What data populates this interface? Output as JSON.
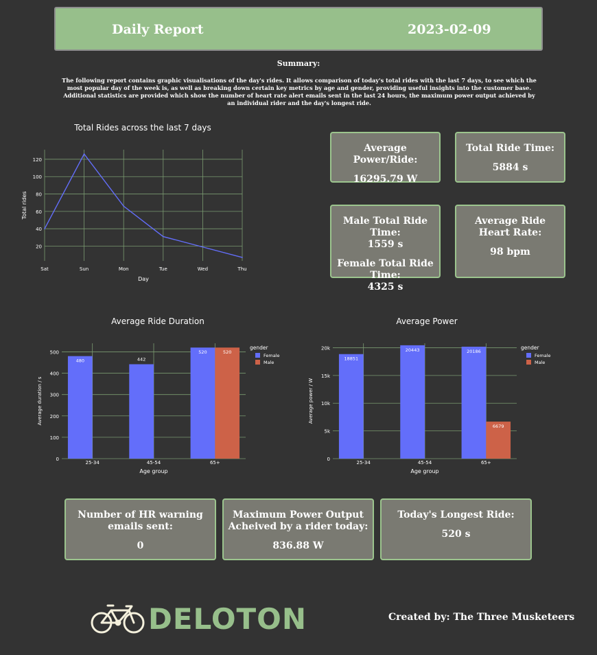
{
  "header": {
    "title": "Daily Report",
    "date": "2023-02-09"
  },
  "summary": {
    "heading": "Summary:",
    "text": "The following report contains graphic visualisations of the day's rides. It allows comparison of today's total rides with the last 7 days, to see which the most popular day of the week is, as well as breaking down certain key metrics by age and gender, providing useful insights into the customer base. Additional statistics are provided which show the number of heart rate alert emails sent in the last 24 hours, the maximum power output achieved by an individual rider and the day's longest ride."
  },
  "stats": {
    "avg_power": {
      "label": "Average Power/Ride:",
      "value": "16295.79 W"
    },
    "total_ride_time": {
      "label": "Total Ride Time:",
      "value": "5884 s"
    },
    "male_ride_time": {
      "label": "Male Total Ride Time:",
      "value": "1559 s"
    },
    "female_ride_time": {
      "label": "Female Total Ride Time:",
      "value": "4325 s"
    },
    "avg_heart_rate": {
      "label": "Average Ride Heart Rate:",
      "value": "98 bpm"
    },
    "hr_emails": {
      "label": "Number of HR warning emails sent:",
      "value": "0"
    },
    "max_power": {
      "label": "Maximum Power Output Acheived by a rider today:",
      "value": "836.88 W"
    },
    "longest_ride": {
      "label": "Today's Longest Ride:",
      "value": "520 s"
    }
  },
  "footer": {
    "brand": "DELOTON",
    "credit": "Created by: The Three Musketeers"
  },
  "colors": {
    "female": "#636efa",
    "male": "#cd6248",
    "grid": "#7a9a70",
    "accent": "#97bf8b"
  },
  "chart_data": [
    {
      "id": "rides",
      "type": "line",
      "title": "Total Rides across the last 7 days",
      "xlabel": "Day",
      "ylabel": "Total rides",
      "categories": [
        "Sat",
        "Sun",
        "Mon",
        "Tue",
        "Wed",
        "Thu"
      ],
      "values": [
        40,
        126,
        66,
        31,
        19,
        7
      ],
      "yticks": [
        20,
        40,
        60,
        80,
        100,
        120
      ],
      "ylim": [
        3,
        131
      ]
    },
    {
      "id": "duration",
      "type": "bar",
      "title": "Average Ride Duration",
      "xlabel": "Age group",
      "ylabel": "Average duration / s",
      "categories": [
        "25-34",
        "45-54",
        "65+"
      ],
      "series": [
        {
          "name": "Female",
          "values": [
            480,
            442,
            520
          ],
          "labels": [
            "480",
            "",
            "520"
          ]
        },
        {
          "name": "Male",
          "values": [
            null,
            null,
            520
          ],
          "labels": [
            "",
            "",
            "520"
          ]
        }
      ],
      "outside_labels": [
        null,
        "442",
        null
      ],
      "yticks": [
        0,
        100,
        200,
        300,
        400,
        500
      ],
      "ytick_labels": [
        "0",
        "100",
        "200",
        "300",
        "400",
        "500"
      ],
      "ylim": [
        0,
        540
      ],
      "legend_title": "gender"
    },
    {
      "id": "power",
      "type": "bar",
      "title": "Average Power",
      "xlabel": "Age group",
      "ylabel": "Average power / W",
      "categories": [
        "25-34",
        "45-54",
        "65+"
      ],
      "series": [
        {
          "name": "Female",
          "values": [
            18851,
            20443,
            20186
          ],
          "labels": [
            "18851",
            "20443",
            "20186"
          ]
        },
        {
          "name": "Male",
          "values": [
            null,
            null,
            6679
          ],
          "labels": [
            "",
            "",
            "6679"
          ]
        }
      ],
      "yticks": [
        0,
        5000,
        10000,
        15000,
        20000
      ],
      "ytick_labels": [
        "0",
        "5k",
        "10k",
        "15k",
        "20k"
      ],
      "ylim": [
        0,
        20800
      ],
      "legend_title": "gender"
    }
  ]
}
